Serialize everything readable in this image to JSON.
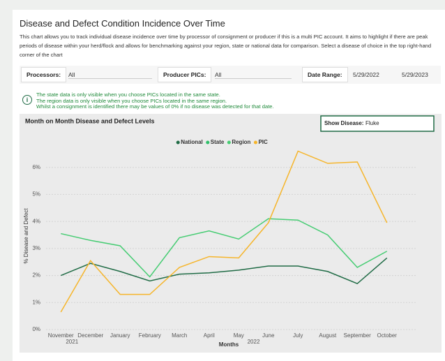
{
  "header": {
    "title": "Disease and Defect Condition Incidence Over Time",
    "description": "This chart allows you to track individual disease incidence over time by processor of consignment or producer if this is a multi PIC account. It aims to highlight if there are peak periods of disease within your herd/flock and allows for benchmarking against your region, state or national data for comparison. Select a disease of choice in the top right-hand corner of the chart"
  },
  "filters": {
    "processors_label": "Processors:",
    "processors_value": "All",
    "pics_label": "Producer PICs:",
    "pics_value": "All",
    "date_label": "Date Range:",
    "date_from": "5/29/2022",
    "date_to": "5/29/2023"
  },
  "notes": [
    "The state data is only visible when you choose PICs located in the same state.",
    "The region data is only visible when you choose PICs located in the same region.",
    "Whilst a consignment is identified there may be values of 0% if no disease was detected for that date."
  ],
  "disease_label": "Show Disease:",
  "disease_value": "Fluke",
  "chart_data": {
    "type": "line",
    "title": "Month on Month Disease and Defect Levels",
    "x_label": "Months",
    "y_label": "% Disease and Defect",
    "categories": [
      "November",
      "December",
      "January",
      "February",
      "March",
      "April",
      "May",
      "June",
      "July",
      "August",
      "September",
      "October"
    ],
    "year_labels": [
      "2021",
      "2022"
    ],
    "series": [
      {
        "name": "National",
        "color": "#1f6b45",
        "values": [
          2.0,
          2.45,
          2.15,
          1.8,
          2.05,
          2.1,
          2.2,
          2.35,
          2.35,
          2.15,
          1.7,
          2.65
        ]
      },
      {
        "name": "State",
        "color": "#2fbf6a",
        "values": [
          null,
          null,
          null,
          null,
          null,
          null,
          null,
          null,
          null,
          null,
          null,
          null
        ]
      },
      {
        "name": "Region",
        "color": "#45cc72",
        "values": [
          3.55,
          3.3,
          3.1,
          1.95,
          3.4,
          3.65,
          3.35,
          4.1,
          4.05,
          3.5,
          2.3,
          2.9
        ]
      },
      {
        "name": "PIC",
        "color": "#f6b52a",
        "values": [
          0.65,
          2.55,
          1.3,
          1.3,
          2.3,
          2.7,
          2.65,
          3.95,
          6.6,
          6.15,
          6.2,
          3.95
        ]
      }
    ],
    "ylim": [
      0,
      7
    ],
    "yticks": [
      {
        "value": 0,
        "label": "0%"
      },
      {
        "value": 1,
        "label": "1%"
      },
      {
        "value": 2,
        "label": "2%"
      },
      {
        "value": 3,
        "label": "3%"
      },
      {
        "value": 4,
        "label": "4%"
      },
      {
        "value": 5,
        "label": "5%"
      },
      {
        "value": 6,
        "label": "6%"
      }
    ],
    "grid": true,
    "legend": "top"
  }
}
